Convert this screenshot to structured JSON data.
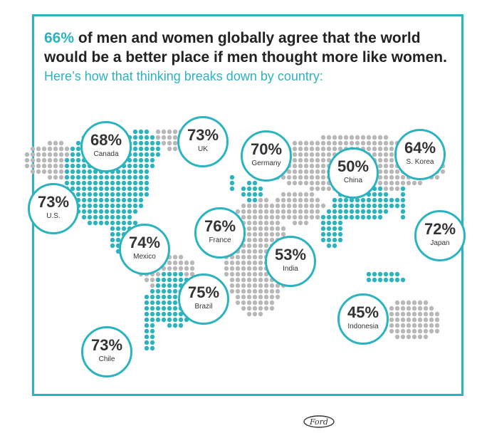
{
  "header": {
    "pct": "66%",
    "line1": " of men and women globally agree that the world",
    "line2": "would be a better place if men thought more like women.",
    "sub": "Here’s how that thinking breaks down by country:"
  },
  "countries": [
    {
      "value": "68%",
      "name": "Canada"
    },
    {
      "value": "73%",
      "name": "UK"
    },
    {
      "value": "70%",
      "name": "Germany"
    },
    {
      "value": "50%",
      "name": "China"
    },
    {
      "value": "64%",
      "name": "S. Korea"
    },
    {
      "value": "73%",
      "name": "U.S."
    },
    {
      "value": "76%",
      "name": "France"
    },
    {
      "value": "72%",
      "name": "Japan"
    },
    {
      "value": "74%",
      "name": "Mexico"
    },
    {
      "value": "53%",
      "name": "India"
    },
    {
      "value": "75%",
      "name": "Brazil"
    },
    {
      "value": "45%",
      "name": "Indonesia"
    },
    {
      "value": "73%",
      "name": "Chile"
    }
  ],
  "colors": {
    "accent": "#2bb3c0",
    "dot_grey": "#b8b8b8",
    "text": "#222222"
  },
  "logo": "Ford"
}
